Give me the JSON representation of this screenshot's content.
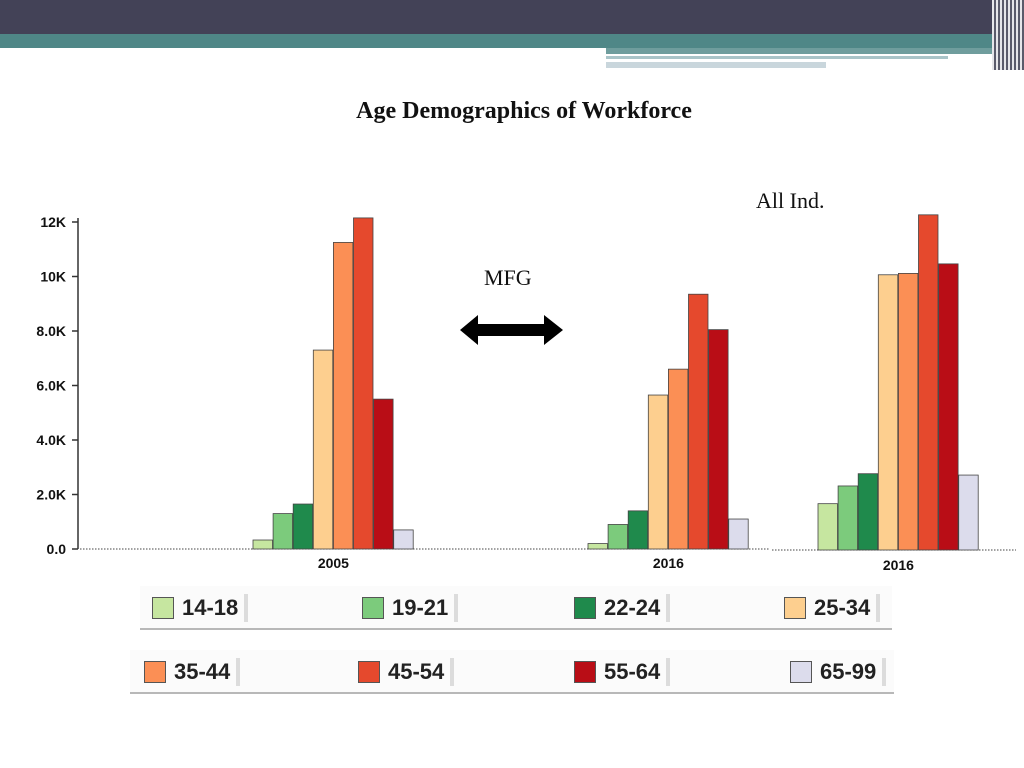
{
  "title": "Age Demographics of Workforce",
  "labels": {
    "all_industries": "All Ind.",
    "manufacturing": "MFG"
  },
  "arrow_icon": "double-headed-arrow",
  "chart_data": {
    "type": "bar",
    "y_ticks": [
      "0.0",
      "2.0K",
      "4.0K",
      "6.0K",
      "8.0K",
      "10K",
      "12K"
    ],
    "ylim": [
      0,
      12300
    ],
    "groups": [
      {
        "label": "2005",
        "values": [
          330,
          1300,
          1650,
          7300,
          11250,
          12150,
          5500,
          700
        ]
      },
      {
        "label": "2016",
        "values": [
          200,
          900,
          1400,
          5650,
          6600,
          9350,
          8050,
          1100
        ]
      },
      {
        "label": "2016",
        "values": [
          1700,
          2350,
          2800,
          10100,
          10150,
          12300,
          10500,
          2750
        ]
      }
    ],
    "series": [
      {
        "name": "14-18",
        "color": "#c6e6a0"
      },
      {
        "name": "19-21",
        "color": "#7ccb7c"
      },
      {
        "name": "22-24",
        "color": "#1f8a4c"
      },
      {
        "name": "25-34",
        "color": "#fdcf8f"
      },
      {
        "name": "35-44",
        "color": "#fb8f55"
      },
      {
        "name": "45-54",
        "color": "#e5492d"
      },
      {
        "name": "55-64",
        "color": "#b90d16"
      },
      {
        "name": "65-99",
        "color": "#dcdcec"
      }
    ]
  }
}
